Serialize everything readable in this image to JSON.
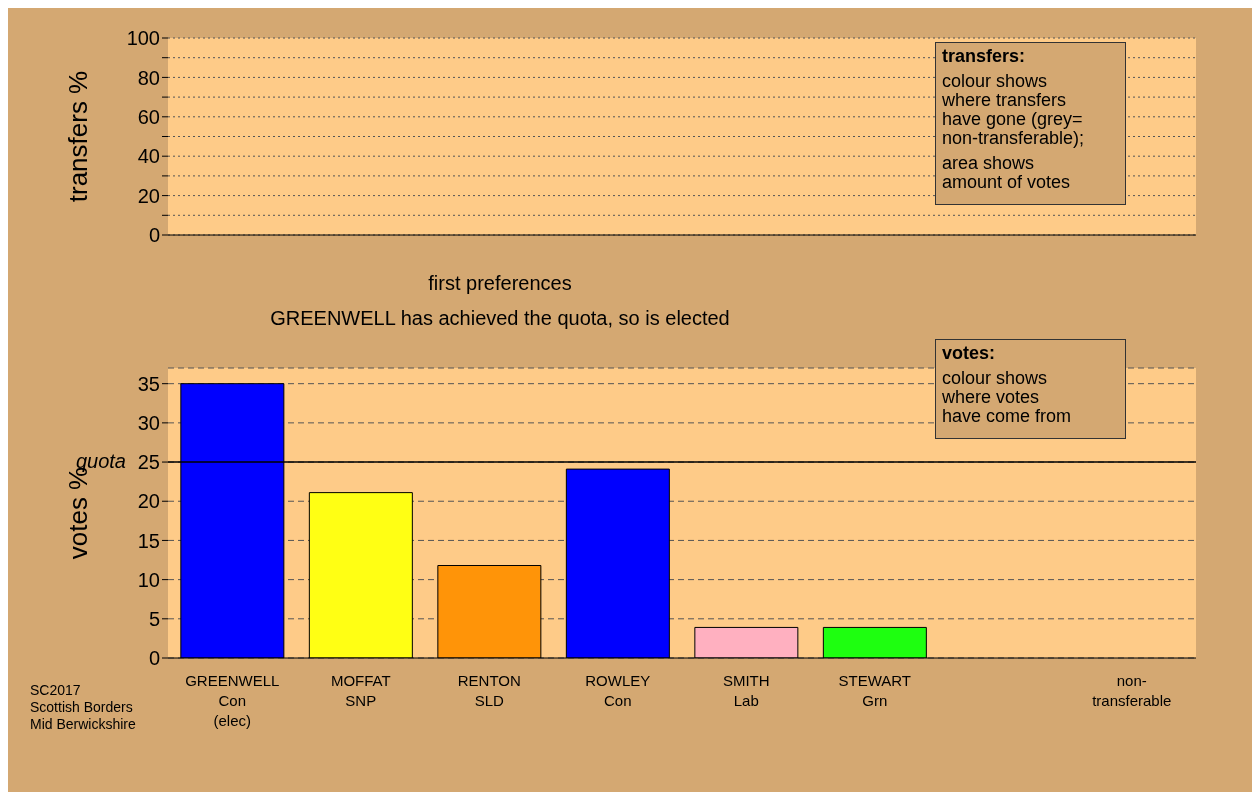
{
  "chart_data": [
    {
      "type": "bar",
      "ylabel": "transfers %",
      "categories": [
        null,
        null,
        null,
        null,
        null,
        null,
        null,
        null
      ],
      "values": [
        null,
        null,
        null,
        null,
        null,
        null,
        null,
        null
      ],
      "ylim": [
        0,
        100
      ],
      "yticks": [
        0,
        {
          "value": 10,
          "label": null
        },
        20,
        {
          "value": 30,
          "label": null
        },
        40,
        {
          "value": 50,
          "label": null
        },
        60,
        {
          "value": 70,
          "label": null
        },
        80,
        {
          "value": 90,
          "label": null
        },
        100
      ],
      "grid": "y",
      "tick_labels": "y",
      "annotations": [
        "transfers:",
        "colour shows\nwhere transfers\nhave gone (grey=\nnon-transferable);",
        "area shows\namount of votes"
      ]
    },
    {
      "type": "bar",
      "title": "first preferences",
      "subtitle": "GREENWELL has achieved the quota, so is elected",
      "ylabel": "votes %",
      "categories": [
        "GREENWELL\nCon\n(elec)",
        "MOFFAT\nSNP",
        "RENTON\nSLD",
        "ROWLEY\nCon",
        "SMITH\nLab",
        "STEWART\nGrn",
        null,
        "non-\ntransferable"
      ],
      "values": [
        35.0,
        21.1,
        11.8,
        24.1,
        3.9,
        3.9,
        null,
        0
      ],
      "colors": [
        "#0000ff",
        "#ffff14",
        "#ff9408",
        "#0000ff",
        "#ffb0c0",
        "#1eff10",
        "#888888",
        "#888888"
      ],
      "ylim": [
        0,
        37
      ],
      "yticks": [
        0,
        5,
        10,
        15,
        20,
        25,
        30,
        35
      ],
      "grid": "y",
      "ref_lines": [
        {
          "axis": "y",
          "value": 25,
          "label": "quota",
          "color": "#000000",
          "line_style": "solid"
        }
      ],
      "annotations": [
        "votes:",
        "colour shows\nwhere votes\nhave come from",
        "SC2017\nScottish Borders\nMid Berwickshire"
      ]
    }
  ]
}
